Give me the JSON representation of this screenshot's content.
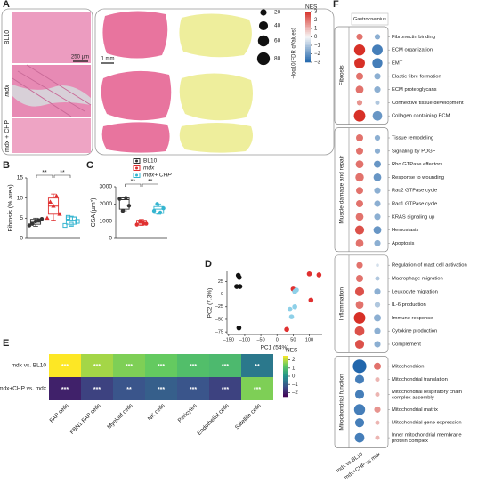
{
  "panel_labels": [
    "A",
    "B",
    "C",
    "D",
    "E",
    "F"
  ],
  "panel_a": {
    "rows": [
      "BL10",
      "mdx",
      "mdx + CHP"
    ],
    "scale_bar_histology": "250 µm",
    "scale_bar_tissue": "1 mm"
  },
  "chart_data": [
    {
      "type": "box",
      "ylabel": "Fibrosis (% area)",
      "ylim": [
        0,
        15
      ],
      "yticks": [
        0,
        5,
        10,
        15
      ],
      "significance": [
        "**",
        "**"
      ],
      "groups": [
        {
          "color": "#333333",
          "marker": "circle",
          "box": {
            "min": 3,
            "q1": 3.5,
            "median": 4,
            "q3": 4.7,
            "max": 5
          },
          "points": [
            3.2,
            3.6,
            4.2,
            4.5,
            4.8
          ]
        },
        {
          "color": "#e03030",
          "marker": "triangle",
          "box": {
            "min": 4.5,
            "q1": 6,
            "median": 8,
            "q3": 10,
            "max": 11
          },
          "points": [
            5,
            9,
            8,
            10.5,
            6
          ]
        },
        {
          "color": "#35b5d0",
          "marker": "square",
          "box": {
            "min": 3,
            "q1": 3.5,
            "median": 4.5,
            "q3": 5.3,
            "max": 5.5
          },
          "points": [
            3.2,
            5.2,
            3.5,
            4.8,
            4.2
          ]
        }
      ]
    },
    {
      "type": "box",
      "ylabel": "CSA (µm²)",
      "ylim": [
        0,
        3000
      ],
      "yticks": [
        0,
        1000,
        2000,
        3000
      ],
      "significance": [
        "**",
        "**"
      ],
      "groups": [
        {
          "name": "BL10",
          "color": "#333333",
          "marker": "circle",
          "box": {
            "min": 1600,
            "q1": 1700,
            "median": 2250,
            "q3": 2350,
            "max": 2380
          },
          "points": [
            2300,
            1600,
            2350,
            1900
          ]
        },
        {
          "name": "mdx",
          "color": "#e03030",
          "marker": "circle",
          "box": {
            "min": 750,
            "q1": 780,
            "median": 880,
            "q3": 1050,
            "max": 1100
          },
          "points": [
            800,
            1000,
            900,
            850
          ]
        },
        {
          "name": "mdx+ CHP",
          "color": "#35b5d0",
          "marker": "circle",
          "box": {
            "min": 1400,
            "q1": 1450,
            "median": 1700,
            "q3": 1850,
            "max": 2000
          },
          "points": [
            1600,
            2000,
            1500,
            1750
          ]
        }
      ]
    },
    {
      "type": "scatter",
      "xlabel": "PC1 (54%)",
      "ylabel": "PC2 (7.3%)",
      "xlim": [
        -155,
        140
      ],
      "ylim": [
        -80,
        45
      ],
      "xticks": [
        {
          "value": -150,
          "label": "–150"
        },
        {
          "value": -100,
          "label": "–100"
        },
        {
          "value": -50,
          "label": "–50"
        },
        0,
        50,
        100
      ],
      "yticks": [
        {
          "value": -75,
          "label": "–75"
        },
        {
          "value": -50,
          "label": "–50"
        },
        {
          "value": -25,
          "label": "–25"
        },
        0,
        25
      ],
      "series": [
        {
          "color": "#111111",
          "x": [
            -125,
            -115,
            -120,
            -117,
            -118
          ],
          "y": [
            15,
            15,
            37,
            33,
            -67
          ]
        },
        {
          "color": "#e03030",
          "x": [
            100,
            130,
            30,
            105,
            50
          ],
          "y": [
            40,
            38,
            -70,
            -12,
            10
          ]
        },
        {
          "color": "#8ed0e8",
          "x": [
            55,
            60,
            40,
            45,
            55
          ],
          "y": [
            5,
            8,
            -30,
            -45,
            -25
          ]
        }
      ]
    },
    {
      "type": "heatmap",
      "rows": [
        "mdx vs. BL10",
        "mdx+CHP vs. mdx"
      ],
      "columns": [
        "FAP cells",
        "FBN1 FAP cells",
        "Myeloid cells",
        "NK cells",
        "Pericytes",
        "Endothelial cells",
        "Satellite cells"
      ],
      "values": [
        [
          2.5,
          1.8,
          1.5,
          1.3,
          1.0,
          0.9,
          -0.5
        ],
        [
          -2,
          -1.5,
          -1.2,
          -1.0,
          -1.2,
          -1.5,
          1.5
        ]
      ],
      "annotations": [
        [
          "***",
          "***",
          "***",
          "***",
          "***",
          "***",
          "**"
        ],
        [
          "***",
          "***",
          "**",
          "***",
          "***",
          "***",
          "***"
        ]
      ],
      "colorbar_title": "NES",
      "clim": [
        -2.5,
        2.5
      ],
      "cticks": [
        2,
        1,
        0,
        {
          "value": -1,
          "label": "–1"
        },
        {
          "value": -2,
          "label": "–2"
        }
      ],
      "colormap": [
        "#440154",
        "#3b528b",
        "#21918c",
        "#5ec962",
        "#fde725"
      ]
    },
    {
      "type": "dotplot",
      "header": "Gastrocnemius",
      "columns": [
        "mdx vs BL10",
        "mdx+CHP vs mdx"
      ],
      "size_title": "−log10(FDR qValues)",
      "size_ticks": [
        20,
        40,
        60,
        80
      ],
      "color_title": "NES",
      "clim": [
        -3,
        3
      ],
      "cticks": [
        3,
        2,
        1,
        0,
        {
          "value": -1,
          "label": "−1"
        },
        {
          "value": -2,
          "label": "−2"
        },
        {
          "value": -3,
          "label": "−3"
        }
      ],
      "colormap": [
        "#2166ac",
        "#f7f7f7",
        "#d73027"
      ],
      "groups": [
        {
          "name": "Fibrosis",
          "rows": [
            {
              "label": [
                "Fibronectin binding"
              ],
              "nes": [
                2,
                -1.5
              ],
              "size": [
                20,
                15
              ]
            },
            {
              "label": [
                "ECM organization"
              ],
              "nes": [
                3,
                -2.5
              ],
              "size": [
                60,
                55
              ]
            },
            {
              "label": [
                "EMT"
              ],
              "nes": [
                3,
                -2.5
              ],
              "size": [
                55,
                50
              ]
            },
            {
              "label": [
                "Elastic fibre formation"
              ],
              "nes": [
                2,
                -1.5
              ],
              "size": [
                25,
                20
              ]
            },
            {
              "label": [
                "ECM proteoglycans"
              ],
              "nes": [
                2,
                -1.5
              ],
              "size": [
                30,
                20
              ]
            },
            {
              "label": [
                "Connective tissue development"
              ],
              "nes": [
                1.5,
                -1
              ],
              "size": [
                15,
                10
              ]
            },
            {
              "label": [
                "Collagen containing ECM"
              ],
              "nes": [
                3,
                -2
              ],
              "size": [
                65,
                45
              ]
            }
          ]
        },
        {
          "name": "Muscle damage and repair",
          "rows": [
            {
              "label": [
                "Tissue remodeling"
              ],
              "nes": [
                2,
                -1.5
              ],
              "size": [
                25,
                15
              ]
            },
            {
              "label": [
                "Signaling by PDGF"
              ],
              "nes": [
                2,
                -1.5
              ],
              "size": [
                25,
                15
              ]
            },
            {
              "label": [
                "Rho GTPase effectors"
              ],
              "nes": [
                2,
                -2
              ],
              "size": [
                30,
                25
              ]
            },
            {
              "label": [
                "Response to wounding"
              ],
              "nes": [
                2,
                -2
              ],
              "size": [
                35,
                30
              ]
            },
            {
              "label": [
                "Rac2 GTPase cycle"
              ],
              "nes": [
                2,
                -1.5
              ],
              "size": [
                25,
                20
              ]
            },
            {
              "label": [
                "Rac1 GTPase cycle"
              ],
              "nes": [
                2,
                -1.5
              ],
              "size": [
                25,
                20
              ]
            },
            {
              "label": [
                "KRAS signaling up"
              ],
              "nes": [
                2,
                -1.5
              ],
              "size": [
                30,
                20
              ]
            },
            {
              "label": [
                "Hemostasis"
              ],
              "nes": [
                2.5,
                -2
              ],
              "size": [
                40,
                30
              ]
            },
            {
              "label": [
                "Apoptosis"
              ],
              "nes": [
                2,
                -1.5
              ],
              "size": [
                30,
                20
              ]
            }
          ]
        },
        {
          "name": "Inflammation",
          "rows": [
            {
              "label": [
                "Regulation of mast cell activation"
              ],
              "nes": [
                2,
                -0.5
              ],
              "size": [
                20,
                5
              ]
            },
            {
              "label": [
                "Macrophage migration"
              ],
              "nes": [
                2,
                -1
              ],
              "size": [
                25,
                10
              ]
            },
            {
              "label": [
                "Leukocyte migration"
              ],
              "nes": [
                2.5,
                -1.5
              ],
              "size": [
                40,
                20
              ]
            },
            {
              "label": [
                "IL-6 production"
              ],
              "nes": [
                2,
                -1
              ],
              "size": [
                30,
                15
              ]
            },
            {
              "label": [
                "Immune response"
              ],
              "nes": [
                3,
                -1.5
              ],
              "size": [
                65,
                25
              ]
            },
            {
              "label": [
                "Cytokine production"
              ],
              "nes": [
                2.5,
                -1.5
              ],
              "size": [
                45,
                20
              ]
            },
            {
              "label": [
                "Complement"
              ],
              "nes": [
                2.5,
                -1.5
              ],
              "size": [
                40,
                20
              ]
            }
          ]
        },
        {
          "name": "Mitochondrial function",
          "rows": [
            {
              "label": [
                "Mitochondrion"
              ],
              "nes": [
                -3,
                2
              ],
              "size": [
                90,
                25
              ]
            },
            {
              "label": [
                "Mitochondrial translation"
              ],
              "nes": [
                -2.5,
                1
              ],
              "size": [
                40,
                10
              ]
            },
            {
              "label": [
                "Mitochondrial respiratory chain",
                "complex assembly"
              ],
              "nes": [
                -2.5,
                1
              ],
              "size": [
                40,
                10
              ]
            },
            {
              "label": [
                "Mitochondrial matrix"
              ],
              "nes": [
                -2.5,
                1.5
              ],
              "size": [
                60,
                20
              ]
            },
            {
              "label": [
                "Mitochondrial gene expression"
              ],
              "nes": [
                -2.5,
                1
              ],
              "size": [
                40,
                10
              ]
            },
            {
              "label": [
                "Inner mitochondrial membrane",
                "protein complex"
              ],
              "nes": [
                -2.5,
                1
              ],
              "size": [
                45,
                10
              ]
            }
          ]
        }
      ]
    }
  ]
}
